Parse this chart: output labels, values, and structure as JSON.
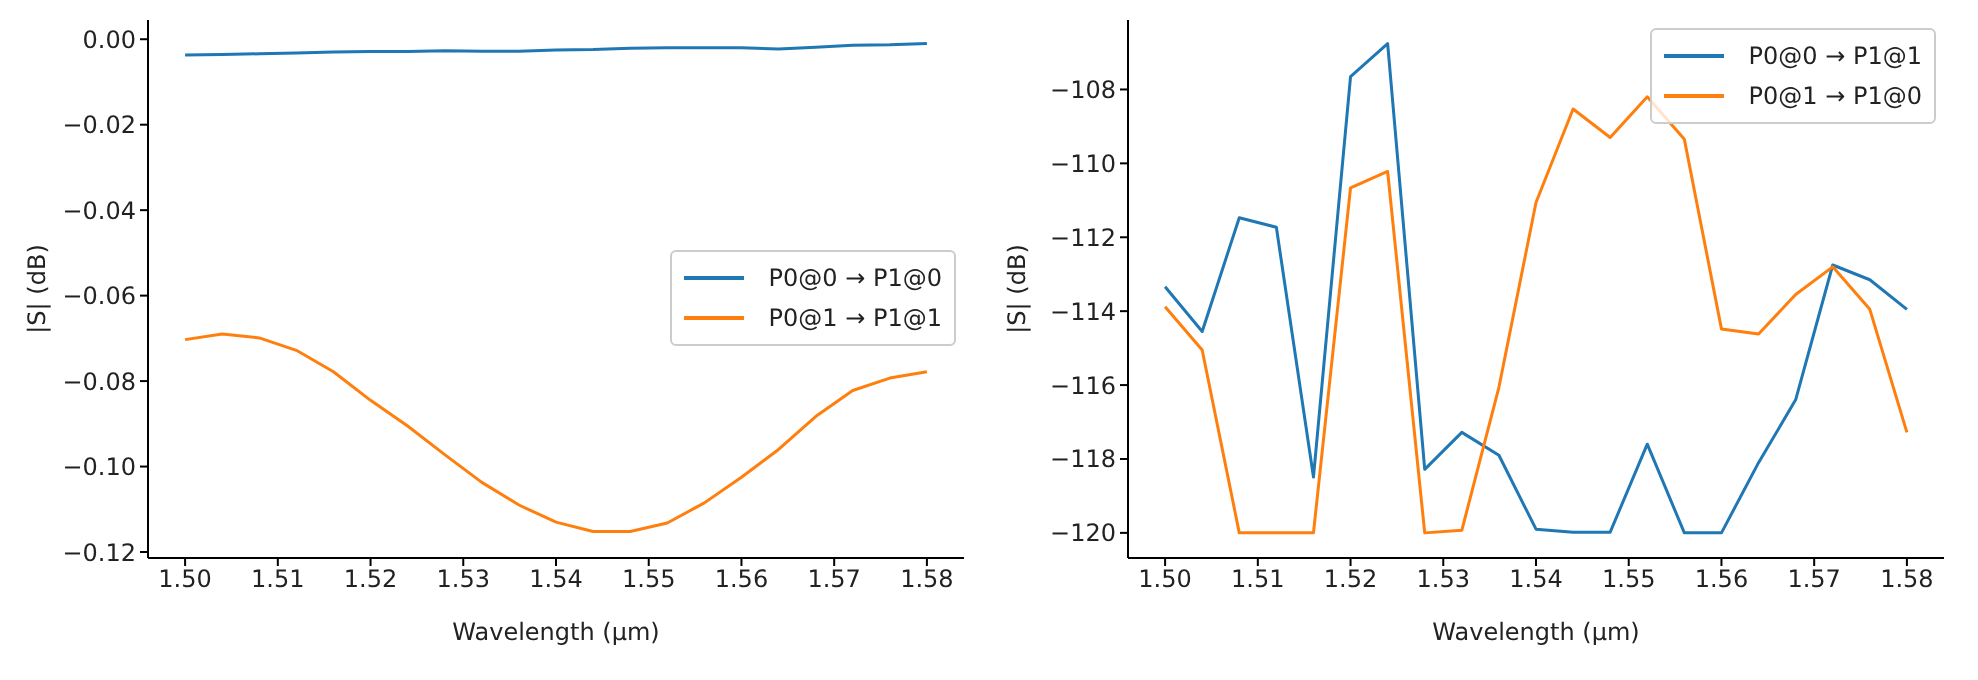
{
  "chart_data": [
    {
      "type": "line",
      "xlabel": "Wavelength (µm)",
      "ylabel": "|S| (dB)",
      "legend": "center right",
      "x": [
        1.5,
        1.504,
        1.508,
        1.512,
        1.516,
        1.52,
        1.524,
        1.528,
        1.532,
        1.536,
        1.54,
        1.544,
        1.548,
        1.552,
        1.556,
        1.56,
        1.564,
        1.568,
        1.572,
        1.576,
        1.58
      ],
      "series": [
        {
          "name": "P0@0 → P1@0",
          "color": "#1f77b4",
          "values": [
            -0.0037,
            -0.0036,
            -0.0034,
            -0.0032,
            -0.003,
            -0.0029,
            -0.0029,
            -0.0027,
            -0.0028,
            -0.0028,
            -0.0025,
            -0.0024,
            -0.0021,
            -0.002,
            -0.002,
            -0.002,
            -0.0023,
            -0.0019,
            -0.0014,
            -0.0013,
            -0.001
          ]
        },
        {
          "name": "P0@1 → P1@1",
          "color": "#ff7f0e",
          "values": [
            -0.0703,
            -0.069,
            -0.0699,
            -0.0728,
            -0.0778,
            -0.0845,
            -0.0905,
            -0.0972,
            -0.1037,
            -0.109,
            -0.113,
            -0.1152,
            -0.1152,
            -0.1132,
            -0.1085,
            -0.1025,
            -0.096,
            -0.0883,
            -0.0822,
            -0.0793,
            -0.0778
          ]
        }
      ],
      "xlim": [
        1.496,
        1.584
      ],
      "xticks": [
        {
          "value": 1.5,
          "label": "1.50"
        },
        {
          "value": 1.51,
          "label": "1.51"
        },
        {
          "value": 1.52,
          "label": "1.52"
        },
        {
          "value": 1.53,
          "label": "1.53"
        },
        {
          "value": 1.54,
          "label": "1.54"
        },
        {
          "value": 1.55,
          "label": "1.55"
        },
        {
          "value": 1.56,
          "label": "1.56"
        },
        {
          "value": 1.57,
          "label": "1.57"
        },
        {
          "value": 1.58,
          "label": "1.58"
        }
      ],
      "ylim": [
        -0.1214,
        0.0045
      ],
      "yticks": [
        {
          "value": -0.12,
          "label": "−0.12"
        },
        {
          "value": -0.1,
          "label": "−0.10"
        },
        {
          "value": -0.08,
          "label": "−0.08"
        },
        {
          "value": -0.06,
          "label": "−0.06"
        },
        {
          "value": -0.04,
          "label": "−0.04"
        },
        {
          "value": -0.02,
          "label": "−0.02"
        },
        {
          "value": 0,
          "label": "0.00"
        }
      ]
    },
    {
      "type": "line",
      "xlabel": "Wavelength (µm)",
      "ylabel": "|S| (dB)",
      "legend": "top right",
      "x": [
        1.5,
        1.504,
        1.508,
        1.512,
        1.516,
        1.52,
        1.524,
        1.528,
        1.532,
        1.536,
        1.54,
        1.544,
        1.548,
        1.552,
        1.556,
        1.56,
        1.564,
        1.568,
        1.572,
        1.576,
        1.58
      ],
      "series": [
        {
          "name": "P0@0 → P1@1",
          "color": "#1f77b4",
          "values": [
            -113.34,
            -114.55,
            -111.47,
            -111.73,
            -118.49,
            -107.65,
            -106.76,
            -118.28,
            -117.28,
            -117.9,
            -119.9,
            -119.98,
            -119.98,
            -117.6,
            -120,
            -120,
            -118.1,
            -116.4,
            -112.75,
            -113.15,
            -113.95
          ]
        },
        {
          "name": "P0@1 → P1@0",
          "color": "#ff7f0e",
          "values": [
            -113.88,
            -115.05,
            -120,
            -120,
            -120,
            -110.66,
            -110.22,
            -120,
            -119.93,
            -116.06,
            -111.06,
            -108.53,
            -109.3,
            -108.2,
            -109.35,
            -114.48,
            -114.62,
            -113.55,
            -112.8,
            -113.95,
            -117.28
          ]
        }
      ],
      "xlim": [
        1.496,
        1.584
      ],
      "xticks": [
        {
          "value": 1.5,
          "label": "1.50"
        },
        {
          "value": 1.51,
          "label": "1.51"
        },
        {
          "value": 1.52,
          "label": "1.52"
        },
        {
          "value": 1.53,
          "label": "1.53"
        },
        {
          "value": 1.54,
          "label": "1.54"
        },
        {
          "value": 1.55,
          "label": "1.55"
        },
        {
          "value": 1.56,
          "label": "1.56"
        },
        {
          "value": 1.57,
          "label": "1.57"
        },
        {
          "value": 1.58,
          "label": "1.58"
        }
      ],
      "ylim": [
        -120.68,
        -106.12
      ],
      "yticks": [
        {
          "value": -120,
          "label": "−120"
        },
        {
          "value": -118,
          "label": "−118"
        },
        {
          "value": -116,
          "label": "−116"
        },
        {
          "value": -114,
          "label": "−114"
        },
        {
          "value": -112,
          "label": "−112"
        },
        {
          "value": -110,
          "label": "−110"
        },
        {
          "value": -108,
          "label": "−108"
        }
      ]
    }
  ]
}
